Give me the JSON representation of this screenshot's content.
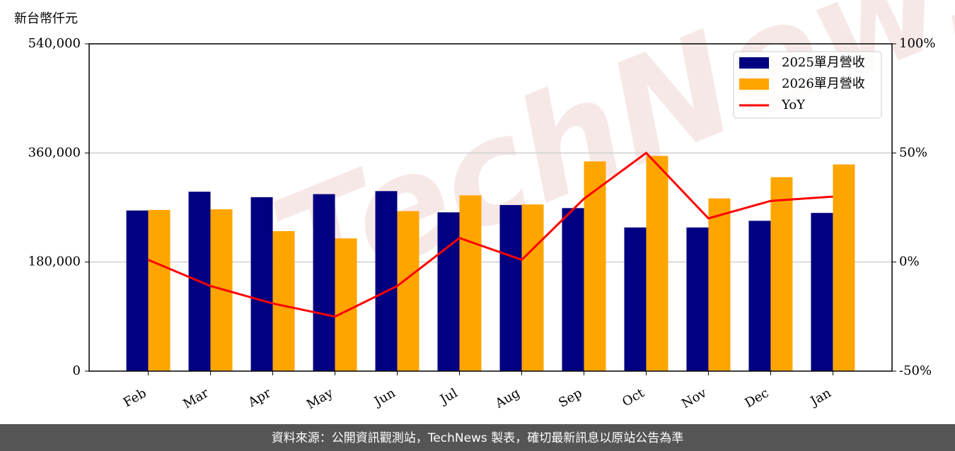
{
  "chart_data": {
    "type": "bar-line",
    "y_label": "新台幣仟元",
    "watermark": "TechNews",
    "categories": [
      "Feb",
      "Mar",
      "Apr",
      "May",
      "Jun",
      "Jul",
      "Aug",
      "Sep",
      "Oct",
      "Nov",
      "Dec",
      "Jan"
    ],
    "series": [
      {
        "name": "2025單月營收",
        "type": "bar",
        "color": "#000080",
        "values": [
          265000,
          296000,
          287000,
          292000,
          297000,
          262000,
          274000,
          269000,
          237000,
          237000,
          248000,
          261000
        ]
      },
      {
        "name": "2026單月營收",
        "type": "bar",
        "color": "#ffa500",
        "values": [
          266000,
          267000,
          231000,
          219000,
          264000,
          290000,
          275000,
          346000,
          355000,
          285000,
          320000,
          341000
        ]
      },
      {
        "name": "YoY",
        "type": "line",
        "axis": "y2",
        "color": "#ff0000",
        "values": [
          1,
          -11,
          -19,
          -25,
          -11,
          11,
          1,
          29,
          50,
          20,
          28,
          30
        ]
      }
    ],
    "ylim": [
      0,
      540000
    ],
    "yticks": [
      0,
      {
        "value": 180000,
        "label": "180,000"
      },
      {
        "value": 360000,
        "label": "360,000"
      },
      {
        "value": 540000,
        "label": "540,000"
      }
    ],
    "y2lim": [
      -50,
      100
    ],
    "y2ticks": [
      {
        "value": -50,
        "label": "-50%"
      },
      {
        "value": 0,
        "label": "0%"
      },
      {
        "value": 50,
        "label": "50%"
      },
      {
        "value": 100,
        "label": "100%"
      }
    ],
    "grid": true,
    "legend": "upper right",
    "footer": "資料來源：公開資訊觀測站，TechNews 製表，確切最新訊息以原站公告為準"
  }
}
